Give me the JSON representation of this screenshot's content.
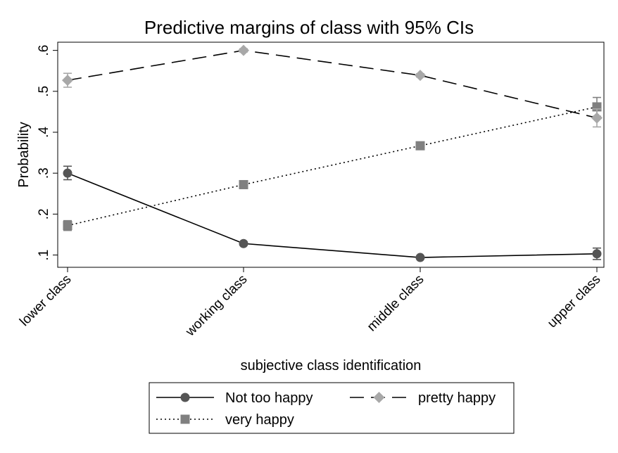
{
  "chart_data": {
    "type": "line",
    "title": "Predictive margins of class with 95% CIs",
    "xlabel": "subjective class identification",
    "ylabel": "Probability",
    "categories": [
      "lower class",
      "working class",
      "middle class",
      "upper class"
    ],
    "ylim": [
      0.07,
      0.62
    ],
    "yticks": [
      ".1",
      ".2",
      ".3",
      ".4",
      ".5",
      ".6"
    ],
    "ytick_values": [
      0.1,
      0.2,
      0.3,
      0.4,
      0.5,
      0.6
    ],
    "grid": false,
    "legend_position": "bottom",
    "series": [
      {
        "name": "Not too happy",
        "values": [
          0.3,
          0.128,
          0.094,
          0.103
        ],
        "ci_low": [
          0.284,
          0.124,
          0.091,
          0.089
        ],
        "ci_high": [
          0.317,
          0.132,
          0.097,
          0.117
        ],
        "color": "#555555",
        "marker": "circle",
        "line_style": "solid"
      },
      {
        "name": "pretty happy",
        "values": [
          0.527,
          0.6,
          0.539,
          0.435
        ],
        "ci_low": [
          0.51,
          0.596,
          0.535,
          0.413
        ],
        "ci_high": [
          0.544,
          0.604,
          0.543,
          0.457
        ],
        "color": "#a8a8a8",
        "marker": "diamond",
        "line_style": "dashed"
      },
      {
        "name": "very happy",
        "values": [
          0.172,
          0.272,
          0.367,
          0.462
        ],
        "ci_low": [
          0.16,
          0.268,
          0.363,
          0.439
        ],
        "ci_high": [
          0.184,
          0.276,
          0.371,
          0.485
        ],
        "color": "#808080",
        "marker": "square",
        "line_style": "dotted"
      }
    ]
  }
}
